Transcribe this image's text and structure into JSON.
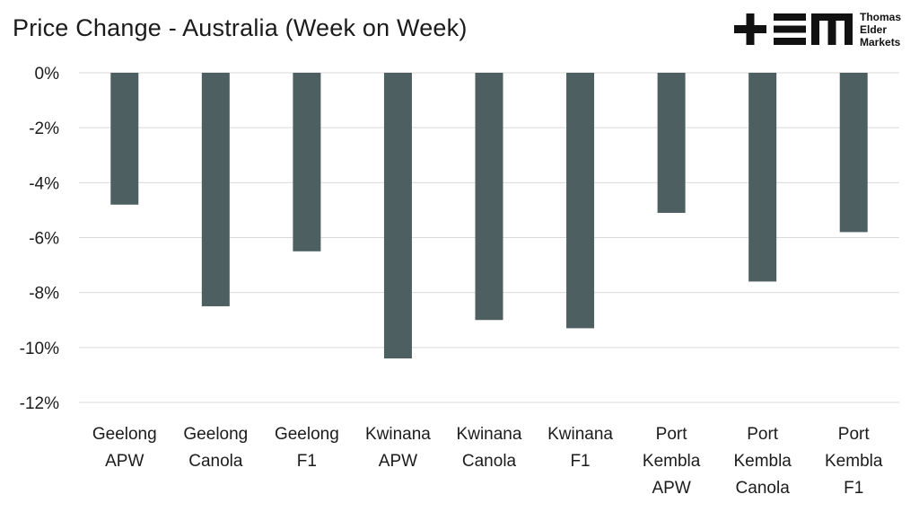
{
  "header": {
    "title": "Price Change - Australia  (Week on Week)"
  },
  "logo": {
    "mark": "+EM",
    "lines": [
      "Thomas",
      "Elder",
      "Markets"
    ]
  },
  "colors": {
    "bar": "#4d5f60",
    "grid": "#d9d9d9",
    "text": "#1b1b1b"
  },
  "chart_data": {
    "type": "bar",
    "title": "Price Change - Australia  (Week on Week)",
    "categories": [
      [
        "Geelong",
        "APW"
      ],
      [
        "Geelong",
        "Canola"
      ],
      [
        "Geelong",
        "F1"
      ],
      [
        "Kwinana",
        "APW"
      ],
      [
        "Kwinana",
        "Canola"
      ],
      [
        "Kwinana",
        "F1"
      ],
      [
        "Port",
        "Kembla",
        "APW"
      ],
      [
        "Port",
        "Kembla",
        "Canola"
      ],
      [
        "Port",
        "Kembla",
        "F1"
      ]
    ],
    "values": [
      -4.8,
      -8.5,
      -6.5,
      -10.4,
      -9.0,
      -9.3,
      -5.1,
      -7.6,
      -5.8
    ],
    "ylim": [
      -12,
      0
    ],
    "yticks": [
      0,
      -2,
      -4,
      -6,
      -8,
      -10,
      -12
    ],
    "ytick_labels": [
      "0%",
      "-2%",
      "-4%",
      "-6%",
      "-8%",
      "-10%",
      "-12%"
    ],
    "grid": true,
    "legend": "none"
  }
}
